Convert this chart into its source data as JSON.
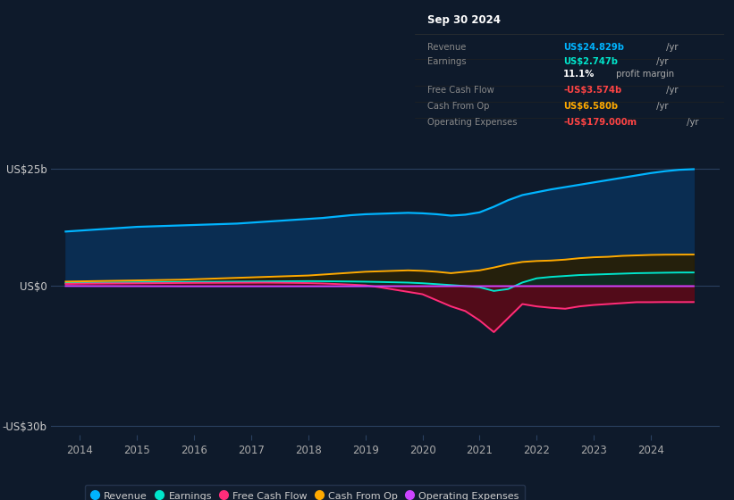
{
  "bg_color": "#0e1a2b",
  "plot_bg_color": "#0e1a2b",
  "years": [
    2013.75,
    2014.0,
    2014.25,
    2014.5,
    2014.75,
    2015.0,
    2015.25,
    2015.5,
    2015.75,
    2016.0,
    2016.25,
    2016.5,
    2016.75,
    2017.0,
    2017.25,
    2017.5,
    2017.75,
    2018.0,
    2018.25,
    2018.5,
    2018.75,
    2019.0,
    2019.25,
    2019.5,
    2019.75,
    2020.0,
    2020.25,
    2020.5,
    2020.75,
    2021.0,
    2021.25,
    2021.5,
    2021.75,
    2022.0,
    2022.25,
    2022.5,
    2022.75,
    2023.0,
    2023.25,
    2023.5,
    2023.75,
    2024.0,
    2024.25,
    2024.5,
    2024.75
  ],
  "revenue": [
    11.5,
    11.7,
    11.9,
    12.1,
    12.3,
    12.5,
    12.6,
    12.7,
    12.8,
    12.9,
    13.0,
    13.1,
    13.2,
    13.4,
    13.6,
    13.8,
    14.0,
    14.2,
    14.4,
    14.7,
    15.0,
    15.2,
    15.3,
    15.4,
    15.5,
    15.4,
    15.2,
    14.9,
    15.1,
    15.6,
    16.8,
    18.2,
    19.3,
    19.9,
    20.5,
    21.0,
    21.5,
    22.0,
    22.5,
    23.0,
    23.5,
    24.0,
    24.4,
    24.7,
    24.829
  ],
  "earnings": [
    0.5,
    0.55,
    0.58,
    0.6,
    0.63,
    0.65,
    0.68,
    0.7,
    0.72,
    0.74,
    0.76,
    0.78,
    0.8,
    0.82,
    0.84,
    0.86,
    0.88,
    0.9,
    0.88,
    0.85,
    0.82,
    0.78,
    0.72,
    0.65,
    0.58,
    0.45,
    0.25,
    0.05,
    -0.15,
    -0.4,
    -1.2,
    -0.8,
    0.6,
    1.5,
    1.8,
    2.0,
    2.2,
    2.3,
    2.4,
    2.5,
    2.6,
    2.65,
    2.7,
    2.74,
    2.747
  ],
  "free_cash_flow": [
    0.3,
    0.35,
    0.38,
    0.4,
    0.42,
    0.44,
    0.46,
    0.48,
    0.5,
    0.52,
    0.53,
    0.54,
    0.55,
    0.56,
    0.57,
    0.55,
    0.52,
    0.48,
    0.4,
    0.28,
    0.15,
    0.0,
    -0.4,
    -0.9,
    -1.4,
    -1.9,
    -3.2,
    -4.5,
    -5.5,
    -7.5,
    -10.0,
    -7.0,
    -4.0,
    -4.5,
    -4.8,
    -5.0,
    -4.5,
    -4.2,
    -4.0,
    -3.8,
    -3.6,
    -3.6,
    -3.57,
    -3.58,
    -3.574
  ],
  "cash_from_op": [
    0.8,
    0.85,
    0.9,
    0.95,
    1.0,
    1.05,
    1.1,
    1.15,
    1.2,
    1.3,
    1.4,
    1.5,
    1.6,
    1.7,
    1.8,
    1.9,
    2.0,
    2.1,
    2.3,
    2.5,
    2.7,
    2.9,
    3.0,
    3.1,
    3.2,
    3.1,
    2.9,
    2.6,
    2.9,
    3.2,
    3.8,
    4.5,
    5.0,
    5.2,
    5.3,
    5.5,
    5.8,
    6.0,
    6.1,
    6.3,
    6.4,
    6.5,
    6.55,
    6.57,
    6.58
  ],
  "operating_expenses": [
    -0.15,
    -0.16,
    -0.17,
    -0.17,
    -0.18,
    -0.18,
    -0.19,
    -0.19,
    -0.2,
    -0.2,
    -0.2,
    -0.2,
    -0.2,
    -0.2,
    -0.2,
    -0.2,
    -0.2,
    -0.2,
    -0.2,
    -0.2,
    -0.2,
    -0.2,
    -0.19,
    -0.19,
    -0.19,
    -0.19,
    -0.19,
    -0.18,
    -0.18,
    -0.18,
    -0.18,
    -0.18,
    -0.18,
    -0.18,
    -0.18,
    -0.18,
    -0.18,
    -0.18,
    -0.18,
    -0.18,
    -0.18,
    -0.18,
    -0.179,
    -0.179,
    -0.179
  ],
  "revenue_color": "#00b4ff",
  "earnings_color": "#00e5cc",
  "free_cash_flow_color": "#ff2d7a",
  "cash_from_op_color": "#ffaa00",
  "operating_expenses_color": "#cc44ff",
  "revenue_fill_color": "#0a2d52",
  "earnings_fill_color": "#0a3028",
  "free_cash_flow_fill_color": "#5a0a18",
  "cash_from_op_fill_color": "#2a1e00",
  "ylim_min": -32,
  "ylim_max": 30,
  "xlim_min": 2013.5,
  "xlim_max": 2025.2,
  "xticks": [
    2014,
    2015,
    2016,
    2017,
    2018,
    2019,
    2020,
    2021,
    2022,
    2023,
    2024
  ],
  "ytick_positions": [
    -30,
    0,
    25
  ],
  "ytick_labels": [
    "-US$30b",
    "US$0",
    "US$25b"
  ],
  "info_box": {
    "title": "Sep 30 2024",
    "rows": [
      {
        "label": "Revenue",
        "value": "US$24.829b",
        "value_color": "#00b4ff",
        "suffix": " /yr"
      },
      {
        "label": "Earnings",
        "value": "US$2.747b",
        "value_color": "#00e5cc",
        "suffix": " /yr"
      },
      {
        "label": "",
        "value": "11.1%",
        "value_color": "#ffffff",
        "suffix": " profit margin"
      },
      {
        "label": "Free Cash Flow",
        "value": "-US$3.574b",
        "value_color": "#ff4444",
        "suffix": " /yr"
      },
      {
        "label": "Cash From Op",
        "value": "US$6.580b",
        "value_color": "#ffaa00",
        "suffix": " /yr"
      },
      {
        "label": "Operating Expenses",
        "value": "-US$179.000m",
        "value_color": "#ff4444",
        "suffix": " /yr"
      }
    ]
  },
  "legend_items": [
    {
      "label": "Revenue",
      "color": "#00b4ff"
    },
    {
      "label": "Earnings",
      "color": "#00e5cc"
    },
    {
      "label": "Free Cash Flow",
      "color": "#ff2d7a"
    },
    {
      "label": "Cash From Op",
      "color": "#ffaa00"
    },
    {
      "label": "Operating Expenses",
      "color": "#cc44ff"
    }
  ]
}
